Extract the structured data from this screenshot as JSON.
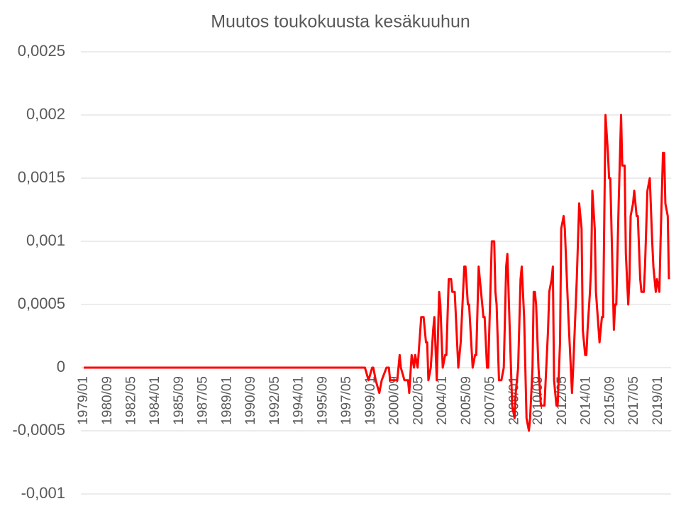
{
  "chart_data": {
    "type": "line",
    "title": "Muutos toukokuusta kesäkuuhun",
    "x": [
      "1979/01",
      "1998/08",
      "1998/11",
      "1999/02",
      "1999/03",
      "1999/05",
      "1999/08",
      "1999/10",
      "2000/02",
      "2000/04",
      "2000/05",
      "2000/11",
      "2001/01",
      "2001/02",
      "2001/05",
      "2001/08",
      "2001/09",
      "2001/11",
      "2002/01",
      "2002/02",
      "2002/04",
      "2002/07",
      "2002/09",
      "2002/11",
      "2002/12",
      "2003/01",
      "2003/03",
      "2003/05",
      "2003/06",
      "2003/08",
      "2003/10",
      "2003/11",
      "2004/01",
      "2004/03",
      "2004/04",
      "2004/06",
      "2004/08",
      "2004/09",
      "2004/11",
      "2005/02",
      "2005/04",
      "2005/07",
      "2005/08",
      "2005/10",
      "2005/11",
      "2006/02",
      "2006/04",
      "2006/05",
      "2006/07",
      "2006/10",
      "2006/11",
      "2006/12",
      "2007/02",
      "2007/03",
      "2007/06",
      "2007/08",
      "2007/09",
      "2007/10",
      "2007/12",
      "2008/02",
      "2008/04",
      "2008/06",
      "2008/07",
      "2008/09",
      "2008/11",
      "2009/01",
      "2009/02",
      "2009/04",
      "2009/06",
      "2009/07",
      "2009/09",
      "2009/11",
      "2010/01",
      "2010/02",
      "2010/04",
      "2010/05",
      "2010/06",
      "2010/07",
      "2010/09",
      "2010/11",
      "2011/02",
      "2011/05",
      "2011/06",
      "2011/08",
      "2011/09",
      "2011/10",
      "2011/12",
      "2012/01",
      "2012/03",
      "2012/04",
      "2012/06",
      "2012/07",
      "2012/10",
      "2013/01",
      "2013/02",
      "2013/05",
      "2013/07",
      "2013/09",
      "2013/10",
      "2013/12",
      "2014/01",
      "2014/02",
      "2014/04",
      "2014/05",
      "2014/06",
      "2014/08",
      "2014/09",
      "2014/12",
      "2015/02",
      "2015/03",
      "2015/05",
      "2015/07",
      "2015/08",
      "2015/09",
      "2015/12",
      "2016/01",
      "2016/02",
      "2016/04",
      "2016/06",
      "2016/07",
      "2016/09",
      "2016/10",
      "2016/12",
      "2017/01",
      "2017/02",
      "2017/04",
      "2017/05",
      "2017/07",
      "2017/08",
      "2017/10",
      "2017/11",
      "2018/01",
      "2018/02",
      "2018/04",
      "2018/06",
      "2018/08",
      "2018/09",
      "2018/11",
      "2018/12",
      "2019/02",
      "2019/03",
      "2019/05",
      "2019/06",
      "2019/07",
      "2019/09",
      "2019/10"
    ],
    "series": [
      {
        "color": "#ff0000",
        "values": [
          0,
          0,
          -0.0001,
          0,
          0,
          -0.0001,
          -0.0002,
          -0.0001,
          0,
          0,
          -0.0001,
          -0.0001,
          0.0001,
          0,
          -0.0001,
          -0.0001,
          -0.0002,
          0.0001,
          0,
          0.0001,
          0,
          0.0004,
          0.0004,
          0.0002,
          0.0002,
          -0.0001,
          0,
          0.0003,
          0.0004,
          -0.0001,
          0.0006,
          0.0005,
          0,
          0.0001,
          0.0001,
          0.0007,
          0.0007,
          0.0006,
          0.0006,
          0,
          0.0002,
          0.0008,
          0.0008,
          0.0005,
          0.0005,
          0,
          0.0001,
          0.0001,
          0.0008,
          0.0005,
          0.0004,
          0.0004,
          0,
          0,
          0.001,
          0.001,
          0.0006,
          0.0005,
          -0.0001,
          -0.0001,
          0,
          0.0008,
          0.0009,
          0.0003,
          -0.0003,
          -0.0004,
          -0.0002,
          0,
          0.0007,
          0.0008,
          0.0004,
          -0.0004,
          -0.0005,
          -0.0004,
          0,
          0.0006,
          0.0006,
          0.0005,
          0,
          -0.0003,
          -0.0003,
          0.0003,
          0.0006,
          0.0007,
          0.0008,
          -0.0001,
          -0.0003,
          -0.0003,
          0.0002,
          0.0011,
          0.0012,
          0.0011,
          0.0004,
          -0.0002,
          0,
          0.0007,
          0.0013,
          0.0011,
          0.0003,
          0.0001,
          0.0001,
          0.0003,
          0.0006,
          0.0008,
          0.0014,
          0.0011,
          0.0006,
          0.0002,
          0.0004,
          0.0004,
          0.002,
          0.0017,
          0.0015,
          0.0015,
          0.0003,
          0.0005,
          0.0005,
          0.0013,
          0.002,
          0.0016,
          0.0016,
          0.0009,
          0.0005,
          0.0007,
          0.0012,
          0.0013,
          0.0014,
          0.0012,
          0.0012,
          0.0007,
          0.0006,
          0.0006,
          0.0008,
          0.0014,
          0.0015,
          0.001,
          0.0008,
          0.0006,
          0.0007,
          0.0006,
          0.001,
          0.0017,
          0.0017,
          0.0013,
          0.0012,
          0.0007
        ]
      }
    ],
    "xlim": [
      "1979/01",
      "2019/10"
    ],
    "xticks": [
      "1979/01",
      "1980/09",
      "1982/05",
      "1984/01",
      "1985/09",
      "1987/05",
      "1989/01",
      "1990/09",
      "1992/05",
      "1994/01",
      "1995/09",
      "1997/05",
      "1999/01",
      "2000/09",
      "2002/05",
      "2004/01",
      "2005/09",
      "2007/05",
      "2009/01",
      "2010/09",
      "2012/05",
      "2014/01",
      "2015/09",
      "2017/05",
      "2019/01"
    ],
    "ylim": [
      -0.001,
      0.0025
    ],
    "yticks": [
      {
        "value": -0.001,
        "label": "-0,001"
      },
      {
        "value": -0.0005,
        "label": "-0,0005"
      },
      0,
      {
        "value": 0.0005,
        "label": "0,0005"
      },
      {
        "value": 0.001,
        "label": "0,001"
      },
      {
        "value": 0.0015,
        "label": "0,0015"
      },
      {
        "value": 0.002,
        "label": "0,002"
      },
      {
        "value": 0.0025,
        "label": "0,0025"
      }
    ],
    "grid": true
  }
}
